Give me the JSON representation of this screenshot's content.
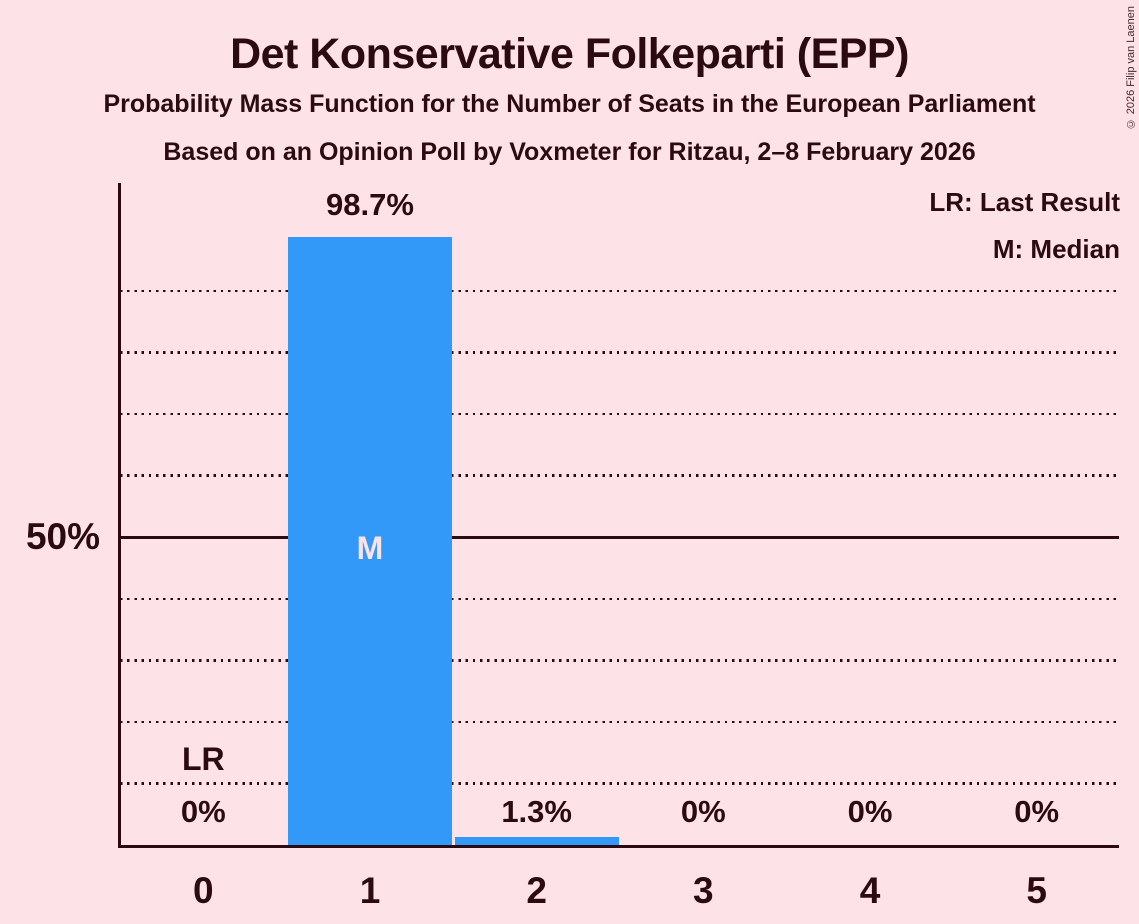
{
  "header": {
    "title": "Det Konservative Folkeparti (EPP)",
    "subtitle1": "Probability Mass Function for the Number of Seats in the European Parliament",
    "subtitle2": "Based on an Opinion Poll by Voxmeter for Ritzau, 2–8 February 2026",
    "copyright": "© 2026 Filip van Laenen"
  },
  "legend": {
    "lr_label": "LR: Last Result",
    "m_label": "M: Median"
  },
  "chart_data": {
    "type": "bar",
    "title": "Det Konservative Folkeparti (EPP)",
    "xlabel": "",
    "ylabel": "",
    "categories": [
      "0",
      "1",
      "2",
      "3",
      "4",
      "5"
    ],
    "values": [
      0,
      98.7,
      1.3,
      0,
      0,
      0
    ],
    "value_labels": [
      "0%",
      "98.7%",
      "1.3%",
      "0%",
      "0%",
      "0%"
    ],
    "ylim": [
      0,
      107.5
    ],
    "y_axis_tick": {
      "value": 50,
      "label": "50%"
    },
    "gridlines_pct": [
      10,
      20,
      30,
      40,
      60,
      70,
      80,
      90
    ],
    "solid_line_pct": 50,
    "grid_style": "dotted",
    "legend_position": "top-right",
    "annotations": [
      {
        "text": "LR",
        "category_index": 0,
        "placement": "above-value-label"
      },
      {
        "text": "M",
        "category_index": 1,
        "placement": "inside-bar"
      }
    ],
    "colors": {
      "background": "#fde2e7",
      "bar": "#3399f9",
      "ink": "#2b0a11",
      "inside_bar_text": "#fde2e7"
    }
  }
}
